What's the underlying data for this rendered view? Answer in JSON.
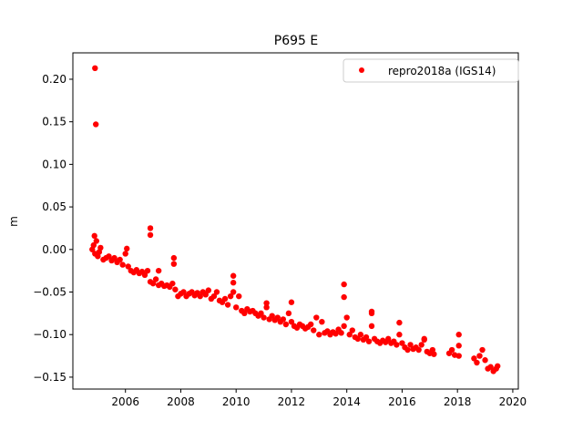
{
  "chart_data": {
    "type": "scatter",
    "title": "P695 E",
    "xlabel": "",
    "ylabel": "m",
    "xlim": [
      2004.1,
      2020.2
    ],
    "ylim": [
      -0.164,
      0.231
    ],
    "grid": false,
    "legend_placement": "top-right",
    "x_ticks": [
      2006,
      2008,
      2010,
      2012,
      2014,
      2016,
      2018,
      2020
    ],
    "x_tick_labels": [
      "2006",
      "2008",
      "2010",
      "2012",
      "2014",
      "2016",
      "2018",
      "2020"
    ],
    "y_ticks": [
      0.2,
      0.15,
      0.1,
      0.05,
      0.0,
      -0.05,
      -0.1,
      -0.15
    ],
    "y_tick_labels": [
      "0.20",
      "0.15",
      "0.10",
      "0.05",
      "0.00",
      "−0.05",
      "−0.10",
      "−0.15"
    ],
    "series": [
      {
        "name": "repro2018a (IGS14)",
        "color": "#ff0000",
        "x": [
          2004.8,
          2004.85,
          2004.9,
          2004.95,
          2005.0,
          2005.05,
          2005.1,
          2005.2,
          2005.3,
          2005.4,
          2005.5,
          2005.6,
          2005.7,
          2005.8,
          2005.9,
          2006.0,
          2006.05,
          2006.1,
          2006.2,
          2006.3,
          2006.4,
          2006.5,
          2006.6,
          2006.7,
          2006.8,
          2006.9,
          2007.0,
          2007.1,
          2007.2,
          2007.3,
          2007.4,
          2007.5,
          2007.6,
          2007.7,
          2007.8,
          2007.9,
          2008.0,
          2008.1,
          2008.2,
          2008.3,
          2008.4,
          2008.5,
          2008.6,
          2008.7,
          2008.8,
          2008.9,
          2009.0,
          2009.1,
          2009.2,
          2009.3,
          2009.4,
          2009.5,
          2009.6,
          2009.7,
          2009.8,
          2009.9,
          2010.0,
          2010.1,
          2010.2,
          2010.3,
          2010.4,
          2010.5,
          2010.6,
          2010.7,
          2010.8,
          2010.9,
          2011.0,
          2011.1,
          2011.2,
          2011.3,
          2011.4,
          2011.5,
          2011.6,
          2011.7,
          2011.8,
          2011.9,
          2012.0,
          2012.1,
          2012.2,
          2012.3,
          2012.4,
          2012.5,
          2012.6,
          2012.7,
          2012.8,
          2012.9,
          2013.0,
          2013.1,
          2013.2,
          2013.3,
          2013.4,
          2013.5,
          2013.6,
          2013.7,
          2013.8,
          2013.9,
          2014.0,
          2014.1,
          2014.2,
          2014.3,
          2014.4,
          2014.5,
          2014.6,
          2014.7,
          2014.8,
          2014.9,
          2015.0,
          2015.1,
          2015.2,
          2015.3,
          2015.4,
          2015.5,
          2015.6,
          2015.7,
          2015.8,
          2015.9,
          2016.0,
          2016.1,
          2016.2,
          2016.3,
          2016.4,
          2016.5,
          2016.6,
          2016.7,
          2016.8,
          2016.9,
          2017.0,
          2017.1,
          2017.15,
          2017.7,
          2017.8,
          2017.9,
          2018.6,
          2018.7,
          2018.8,
          2018.9,
          2019.0,
          2019.1,
          2019.2,
          2019.3,
          2019.4,
          2019.45,
          2004.9,
          2004.93,
          2004.88,
          2006.9,
          2006.9,
          2007.75,
          2007.75,
          2007.2,
          2009.9,
          2009.9,
          2011.1,
          2012.0,
          2013.9,
          2013.9,
          2014.9,
          2014.9,
          2015.9,
          2016.8,
          2018.05,
          2018.05,
          2018.05
        ],
        "y": [
          0.0,
          0.005,
          -0.005,
          0.01,
          -0.008,
          -0.003,
          0.002,
          -0.012,
          -0.01,
          -0.008,
          -0.013,
          -0.01,
          -0.015,
          -0.012,
          -0.018,
          -0.005,
          0.001,
          -0.02,
          -0.025,
          -0.027,
          -0.024,
          -0.028,
          -0.026,
          -0.03,
          -0.025,
          -0.038,
          -0.04,
          -0.035,
          -0.042,
          -0.04,
          -0.043,
          -0.042,
          -0.044,
          -0.04,
          -0.047,
          -0.055,
          -0.052,
          -0.05,
          -0.055,
          -0.052,
          -0.05,
          -0.054,
          -0.051,
          -0.055,
          -0.05,
          -0.053,
          -0.048,
          -0.058,
          -0.055,
          -0.05,
          -0.06,
          -0.062,
          -0.058,
          -0.065,
          -0.055,
          -0.05,
          -0.068,
          -0.055,
          -0.072,
          -0.075,
          -0.07,
          -0.073,
          -0.072,
          -0.075,
          -0.078,
          -0.075,
          -0.08,
          -0.068,
          -0.082,
          -0.078,
          -0.083,
          -0.08,
          -0.085,
          -0.082,
          -0.088,
          -0.075,
          -0.085,
          -0.09,
          -0.092,
          -0.088,
          -0.09,
          -0.093,
          -0.091,
          -0.088,
          -0.095,
          -0.08,
          -0.1,
          -0.085,
          -0.098,
          -0.096,
          -0.1,
          -0.097,
          -0.099,
          -0.094,
          -0.098,
          -0.09,
          -0.08,
          -0.1,
          -0.095,
          -0.103,
          -0.105,
          -0.1,
          -0.106,
          -0.103,
          -0.108,
          -0.09,
          -0.105,
          -0.108,
          -0.11,
          -0.107,
          -0.109,
          -0.105,
          -0.11,
          -0.108,
          -0.112,
          -0.1,
          -0.11,
          -0.115,
          -0.118,
          -0.112,
          -0.117,
          -0.115,
          -0.118,
          -0.112,
          -0.105,
          -0.12,
          -0.122,
          -0.118,
          -0.123,
          -0.122,
          -0.118,
          -0.124,
          -0.128,
          -0.133,
          -0.125,
          -0.118,
          -0.13,
          -0.14,
          -0.138,
          -0.143,
          -0.14,
          -0.137,
          0.213,
          0.147,
          0.016,
          0.025,
          0.017,
          -0.01,
          -0.017,
          -0.025,
          -0.031,
          -0.039,
          -0.063,
          -0.062,
          -0.041,
          -0.056,
          -0.073,
          -0.075,
          -0.086,
          -0.106,
          -0.1,
          -0.113,
          -0.125
        ]
      }
    ]
  }
}
